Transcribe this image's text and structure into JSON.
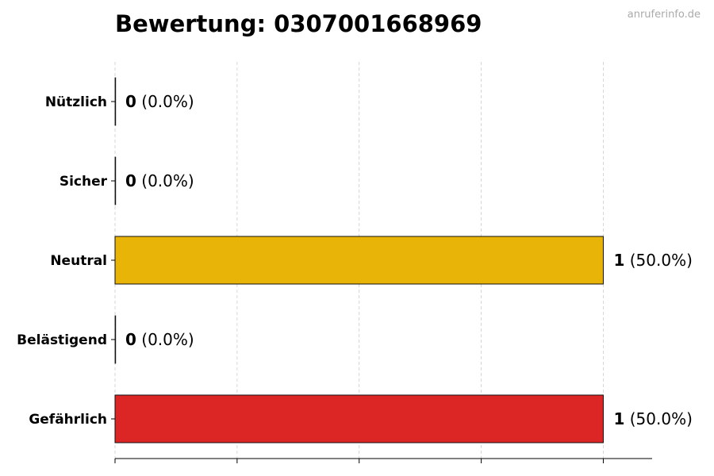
{
  "watermark": "anruferinfo.de",
  "chart_data": {
    "type": "bar",
    "orientation": "horizontal",
    "title": "Bewertung: 0307001668969",
    "categories": [
      "Nützlich",
      "Sicher",
      "Neutral",
      "Belästigend",
      "Gefährlich"
    ],
    "values": [
      0,
      0,
      1,
      0,
      1
    ],
    "value_labels": [
      "0",
      "0",
      "1",
      "0",
      "1"
    ],
    "percent_labels": [
      "(0.0%)",
      "(0.0%)",
      "(50.0%)",
      "(0.0%)",
      "(50.0%)"
    ],
    "colors": [
      "#2e9e44",
      "#1f77b4",
      "#e8b408",
      "#f07f0e",
      "#dc2626"
    ],
    "xlim": [
      0,
      1.1
    ],
    "grid": true,
    "xlabel": "",
    "ylabel": ""
  }
}
